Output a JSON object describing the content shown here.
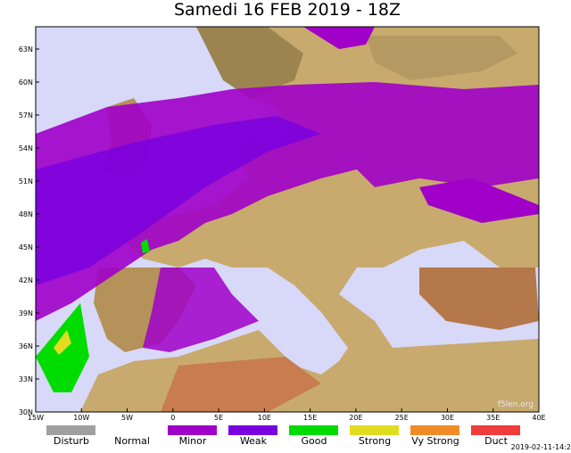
{
  "title": "Samedi 16 FEB 2019 - 18Z",
  "lat_labels": [
    "63N",
    "60N",
    "57N",
    "54N",
    "51N",
    "48N",
    "45N",
    "42N",
    "39N",
    "36N",
    "33N",
    "30N"
  ],
  "lon_labels": [
    "15W",
    "10W",
    "5W",
    "0",
    "5E",
    "10E",
    "15E",
    "20E",
    "25E",
    "30E",
    "35E",
    "40E"
  ],
  "legend": [
    {
      "label": "Disturb",
      "color": "#a0a0a0"
    },
    {
      "label": "Normal",
      "color": "#ffffff"
    },
    {
      "label": "Minor",
      "color": "#a000c8"
    },
    {
      "label": "Weak",
      "color": "#7800e0"
    },
    {
      "label": "Good",
      "color": "#00dc00"
    },
    {
      "label": "Strong",
      "color": "#e0dc20"
    },
    {
      "label": "Vy Strong",
      "color": "#f08c28"
    },
    {
      "label": "Duct",
      "color": "#f03c3c"
    }
  ],
  "watermark": "f5len.org",
  "timestamp": "2019-02-11-14:2"
}
